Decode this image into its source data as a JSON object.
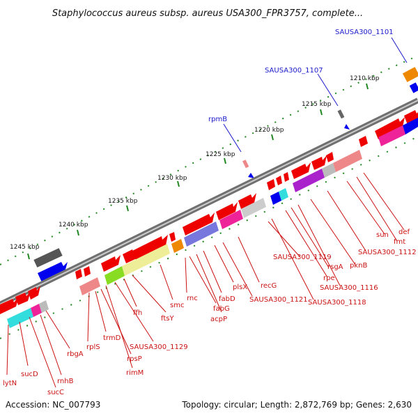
{
  "title": "Staphylococcus aureus subsp. aureus USA300_FPR3757, complete...",
  "footer": {
    "accession": "Accession: NC_007793",
    "topology": "Topology: circular; Length: 2,872,769 bp; Genes: 2,630"
  },
  "colors": {
    "gene_red": "#ee0000",
    "backbone": "#888888",
    "label_blue": "#1a1acc",
    "label_red": "#cc1111",
    "tick_green": "#228822"
  },
  "scale_ticks": [
    "1245 kbp",
    "1240 kbp",
    "1235 kbp",
    "1230 kbp",
    "1225 kbp",
    "1220 kbp",
    "1215 kbp",
    "1210 kbp"
  ],
  "top_labels": [
    "SAUSA300_1101",
    "SAUSA300_1107",
    "rpmB"
  ],
  "gene_labels": [
    "lytN",
    "sucD",
    "sucC",
    "rnhB",
    "rbgA",
    "rplS",
    "trmD",
    "rpsP",
    "rimM",
    "SAUSA300_1129",
    "ffh",
    "ftsY",
    "smc",
    "rnc",
    "fabG",
    "acpP",
    "fabD",
    "plsX",
    "SAUSA300_1121",
    "recG",
    "SAUSA300_1119",
    "SAUSA300_1118",
    "rpe",
    "rsgA",
    "SAUSA300_1116",
    "pknB",
    "SAUSA300_1112",
    "sun",
    "fmt",
    "def"
  ]
}
